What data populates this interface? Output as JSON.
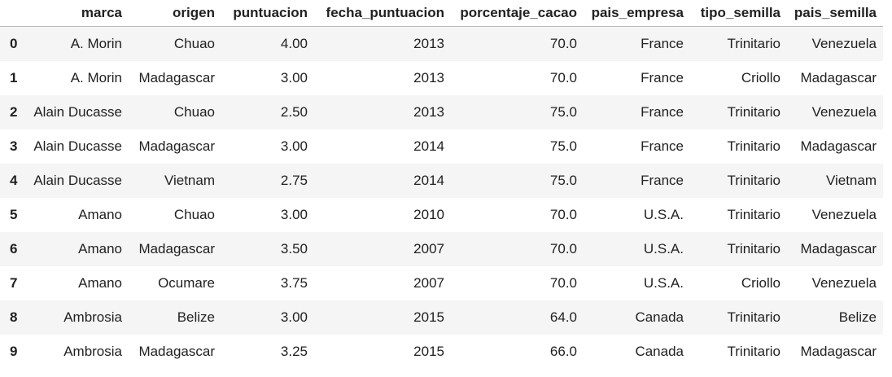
{
  "table": {
    "columns": [
      "",
      "marca",
      "origen",
      "puntuacion",
      "fecha_puntuacion",
      "porcentaje_cacao",
      "pais_empresa",
      "tipo_semilla",
      "pais_semilla"
    ],
    "rows": [
      [
        "0",
        "A. Morin",
        "Chuao",
        "4.00",
        "2013",
        "70.0",
        "France",
        "Trinitario",
        "Venezuela"
      ],
      [
        "1",
        "A. Morin",
        "Madagascar",
        "3.00",
        "2013",
        "70.0",
        "France",
        "Criollo",
        "Madagascar"
      ],
      [
        "2",
        "Alain Ducasse",
        "Chuao",
        "2.50",
        "2013",
        "75.0",
        "France",
        "Trinitario",
        "Venezuela"
      ],
      [
        "3",
        "Alain Ducasse",
        "Madagascar",
        "3.00",
        "2014",
        "75.0",
        "France",
        "Trinitario",
        "Madagascar"
      ],
      [
        "4",
        "Alain Ducasse",
        "Vietnam",
        "2.75",
        "2014",
        "75.0",
        "France",
        "Trinitario",
        "Vietnam"
      ],
      [
        "5",
        "Amano",
        "Chuao",
        "3.00",
        "2010",
        "70.0",
        "U.S.A.",
        "Trinitario",
        "Venezuela"
      ],
      [
        "6",
        "Amano",
        "Madagascar",
        "3.50",
        "2007",
        "70.0",
        "U.S.A.",
        "Trinitario",
        "Madagascar"
      ],
      [
        "7",
        "Amano",
        "Ocumare",
        "3.75",
        "2007",
        "70.0",
        "U.S.A.",
        "Criollo",
        "Venezuela"
      ],
      [
        "8",
        "Ambrosia",
        "Belize",
        "3.00",
        "2015",
        "64.0",
        "Canada",
        "Trinitario",
        "Belize"
      ],
      [
        "9",
        "Ambrosia",
        "Madagascar",
        "3.25",
        "2015",
        "66.0",
        "Canada",
        "Trinitario",
        "Madagascar"
      ]
    ]
  }
}
